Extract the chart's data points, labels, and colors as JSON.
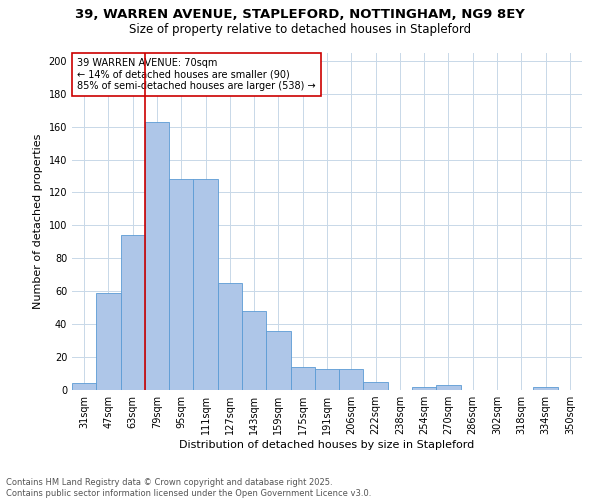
{
  "title_line1": "39, WARREN AVENUE, STAPLEFORD, NOTTINGHAM, NG9 8EY",
  "title_line2": "Size of property relative to detached houses in Stapleford",
  "xlabel": "Distribution of detached houses by size in Stapleford",
  "ylabel": "Number of detached properties",
  "categories": [
    "31sqm",
    "47sqm",
    "63sqm",
    "79sqm",
    "95sqm",
    "111sqm",
    "127sqm",
    "143sqm",
    "159sqm",
    "175sqm",
    "191sqm",
    "206sqm",
    "222sqm",
    "238sqm",
    "254sqm",
    "270sqm",
    "286sqm",
    "302sqm",
    "318sqm",
    "334sqm",
    "350sqm"
  ],
  "values": [
    4,
    59,
    94,
    163,
    128,
    128,
    65,
    48,
    36,
    14,
    13,
    13,
    5,
    0,
    2,
    3,
    0,
    0,
    0,
    2,
    0
  ],
  "bar_color": "#aec6e8",
  "bar_edge_color": "#5b9bd5",
  "red_line_x": 2.5,
  "annotation_text": "39 WARREN AVENUE: 70sqm\n← 14% of detached houses are smaller (90)\n85% of semi-detached houses are larger (538) →",
  "annotation_box_color": "#ffffff",
  "annotation_box_edge": "#cc0000",
  "red_line_color": "#cc0000",
  "ylim": [
    0,
    205
  ],
  "yticks": [
    0,
    20,
    40,
    60,
    80,
    100,
    120,
    140,
    160,
    180,
    200
  ],
  "footer_line1": "Contains HM Land Registry data © Crown copyright and database right 2025.",
  "footer_line2": "Contains public sector information licensed under the Open Government Licence v3.0.",
  "background_color": "#ffffff",
  "grid_color": "#c8d8e8",
  "title_fontsize": 9.5,
  "subtitle_fontsize": 8.5,
  "axis_label_fontsize": 8,
  "tick_fontsize": 7,
  "annotation_fontsize": 7,
  "footer_fontsize": 6
}
